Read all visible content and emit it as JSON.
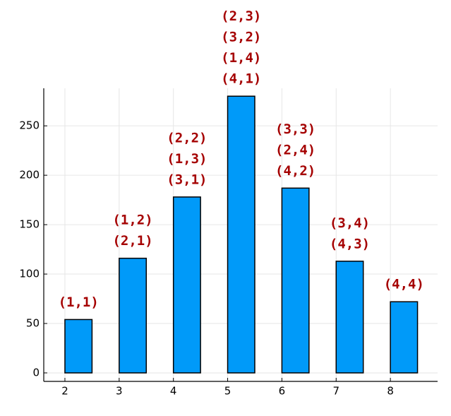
{
  "chart_data": {
    "type": "bar",
    "x": [
      2,
      3,
      4,
      5,
      6,
      7,
      8
    ],
    "values": [
      54,
      116,
      178,
      280,
      187,
      113,
      72
    ],
    "annotations": [
      [
        "(1,1)"
      ],
      [
        "(1,2)",
        "(2,1)"
      ],
      [
        "(2,2)",
        "(1,3)",
        "(3,1)"
      ],
      [
        "(2,3)",
        "(3,2)",
        "(1,4)",
        "(4,1)"
      ],
      [
        "(3,3)",
        "(2,4)",
        "(4,2)"
      ],
      [
        "(3,4)",
        "(4,3)"
      ],
      [
        "(4,4)"
      ]
    ],
    "color": "#009af9",
    "annotation_color": "#a50000",
    "xlim": [
      1.61,
      8.87
    ],
    "ylim": [
      -8.6,
      288
    ],
    "xticks": [
      2,
      3,
      4,
      5,
      6,
      7,
      8
    ],
    "yticks": [
      0,
      50,
      100,
      150,
      200,
      250
    ],
    "grid": true
  }
}
